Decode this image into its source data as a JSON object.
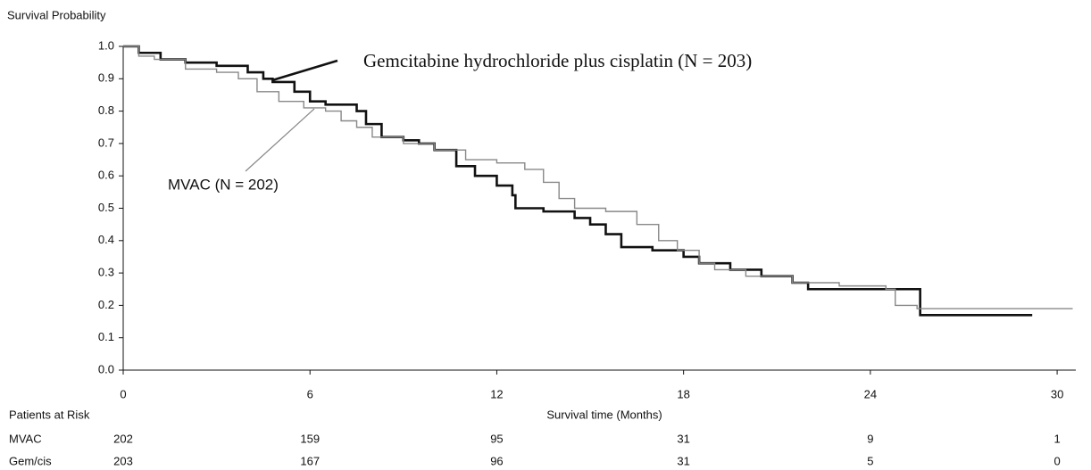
{
  "chart_data": {
    "type": "step",
    "y_label": "Survival Probability",
    "x_label": "Survival time (Months)",
    "xlim": [
      0,
      30.6
    ],
    "ylim": [
      0,
      1
    ],
    "xticks": [
      0,
      6,
      12,
      18,
      24,
      30
    ],
    "yticks": [
      {
        "value": 0,
        "label": "0.0"
      },
      {
        "value": 0.1,
        "label": "0.1"
      },
      {
        "value": 0.2,
        "label": "0.2"
      },
      {
        "value": 0.3,
        "label": "0.3"
      },
      {
        "value": 0.4,
        "label": "0.4"
      },
      {
        "value": 0.5,
        "label": "0.5"
      },
      {
        "value": 0.6,
        "label": "0.6"
      },
      {
        "value": 0.7,
        "label": "0.7"
      },
      {
        "value": 0.8,
        "label": "0.8"
      },
      {
        "value": 0.9,
        "label": "0.9"
      },
      {
        "value": 1,
        "label": "1.0"
      }
    ],
    "grid": false,
    "series": [
      {
        "name": "Gemcitabine hydrochloride plus cisplatin (N = 203)",
        "color": "#111111",
        "x": [
          0,
          0.5,
          1.2,
          2,
          3,
          4,
          4.5,
          4.8,
          5.5,
          6,
          6.5,
          7.5,
          7.8,
          8.3,
          9,
          9.5,
          10,
          10.7,
          11.3,
          12,
          12.5,
          12.6,
          13.5,
          14.5,
          15,
          15.5,
          16,
          17,
          18,
          18.5,
          19.5,
          20.5,
          21.5,
          22,
          25.6,
          29.2
        ],
        "values": [
          1,
          0.98,
          0.96,
          0.95,
          0.94,
          0.92,
          0.9,
          0.89,
          0.86,
          0.83,
          0.82,
          0.8,
          0.76,
          0.72,
          0.71,
          0.7,
          0.68,
          0.63,
          0.6,
          0.57,
          0.54,
          0.5,
          0.49,
          0.47,
          0.45,
          0.42,
          0.38,
          0.37,
          0.35,
          0.33,
          0.31,
          0.29,
          0.27,
          0.25,
          0.17,
          0.17
        ]
      },
      {
        "name": "MVAC (N = 202)",
        "color": "#888888",
        "x": [
          0,
          0.5,
          1,
          2,
          3,
          3.7,
          4.3,
          5,
          5.8,
          6.5,
          7,
          7.5,
          8,
          9,
          10,
          11,
          12,
          12.9,
          13.5,
          14,
          14.5,
          15.5,
          16.5,
          17.2,
          17.8,
          18.5,
          19,
          20,
          21.5,
          23,
          24.5,
          24.8,
          25.5,
          30.5
        ],
        "values": [
          1,
          0.97,
          0.96,
          0.93,
          0.92,
          0.9,
          0.86,
          0.83,
          0.81,
          0.8,
          0.77,
          0.75,
          0.72,
          0.7,
          0.68,
          0.65,
          0.64,
          0.62,
          0.58,
          0.53,
          0.5,
          0.49,
          0.45,
          0.4,
          0.37,
          0.33,
          0.31,
          0.29,
          0.27,
          0.26,
          0.25,
          0.2,
          0.19,
          0.19
        ]
      }
    ],
    "risk_table": {
      "title": "Patients at Risk",
      "rows": [
        {
          "name": "MVAC",
          "values": [
            202,
            159,
            95,
            31,
            9,
            1
          ]
        },
        {
          "name": "Gem/cis",
          "values": [
            203,
            167,
            96,
            31,
            5,
            0
          ]
        }
      ]
    }
  }
}
